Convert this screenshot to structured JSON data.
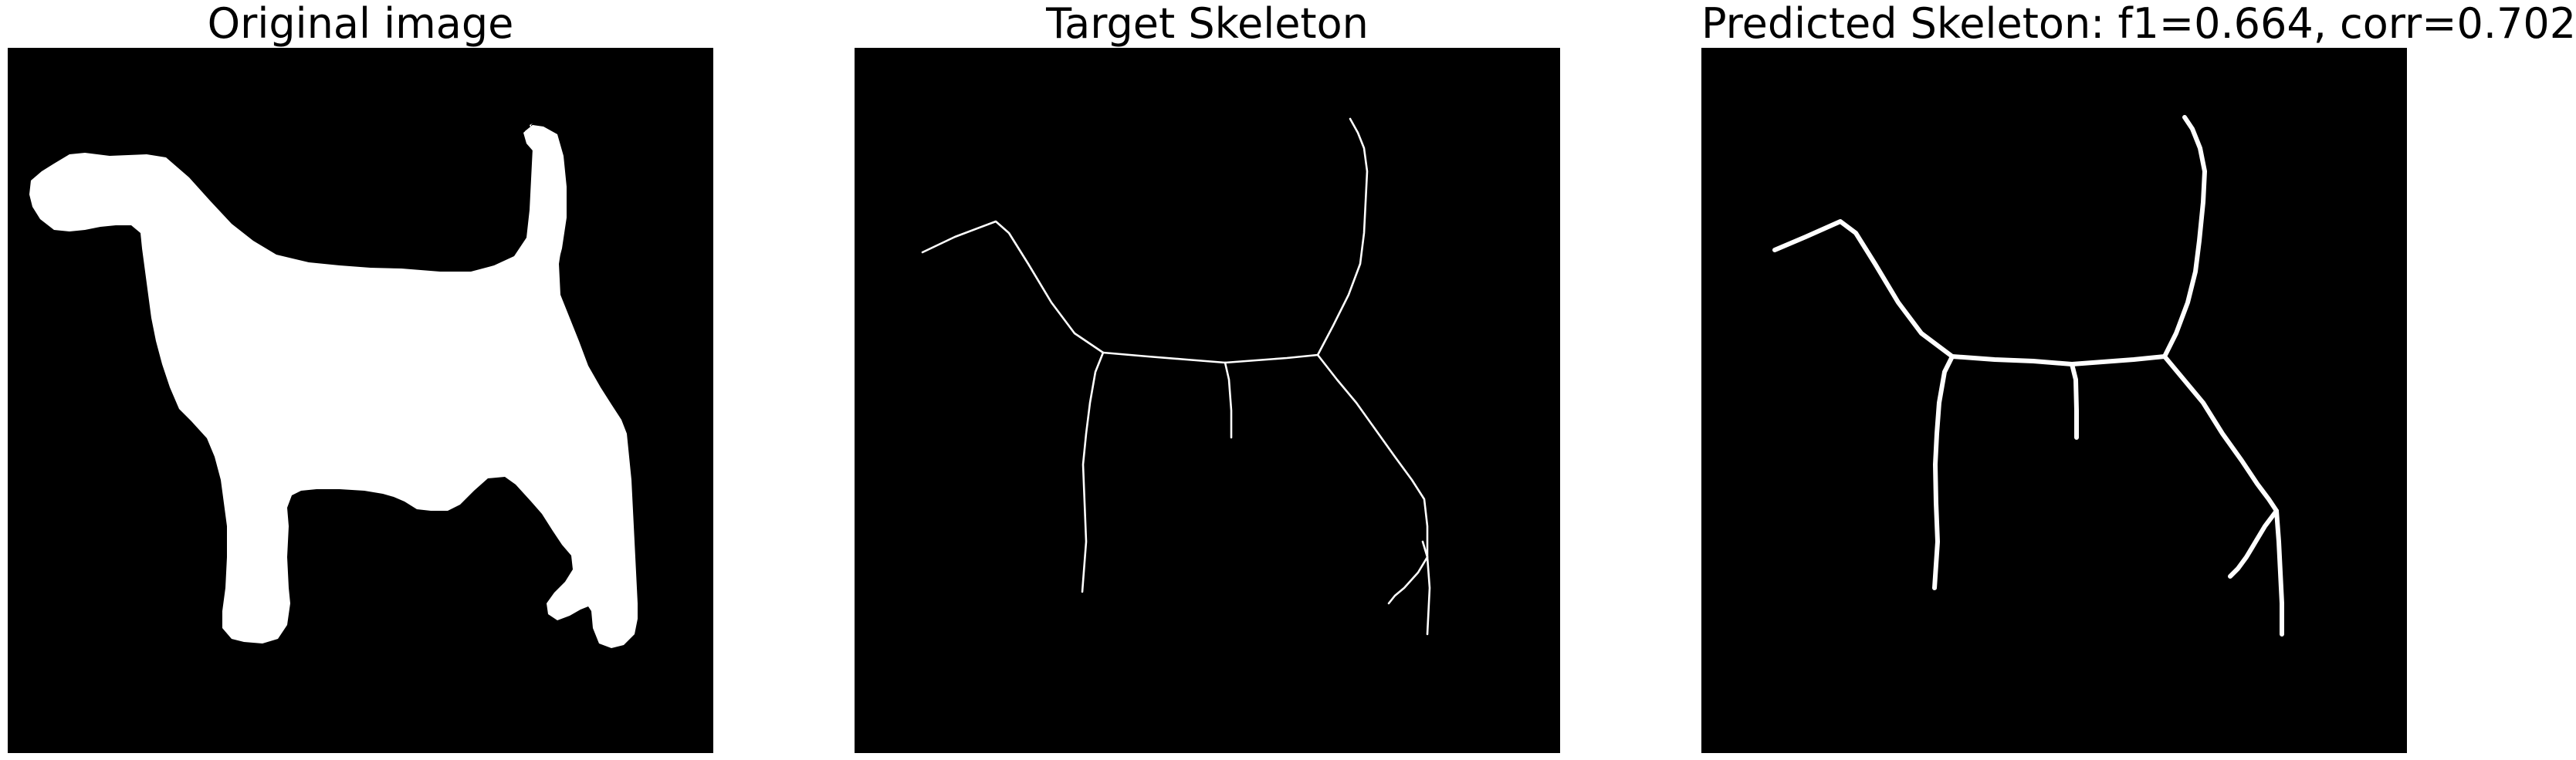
{
  "panels": [
    {
      "title": "Original image"
    },
    {
      "title": "Target Skeleton"
    },
    {
      "title": "Predicted Skeleton: f1=0.664, corr=0.702"
    }
  ],
  "colors": {
    "background": "#000000",
    "foreground": "#ffffff"
  }
}
